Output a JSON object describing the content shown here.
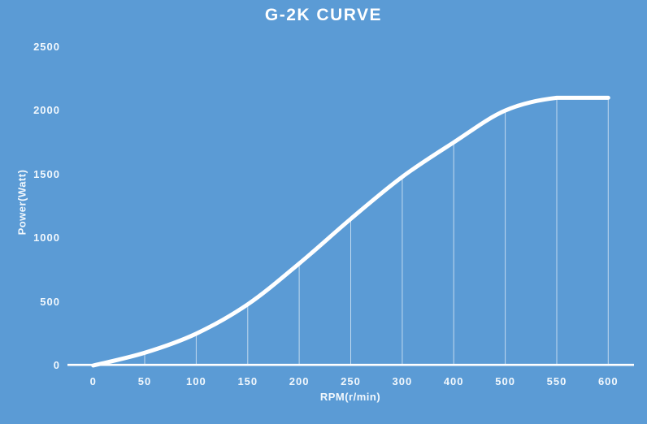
{
  "chart_data": {
    "type": "line",
    "title": "G-2K CURVE",
    "xlabel": "RPM(r/min)",
    "ylabel": "Power(Watt)",
    "categories": [
      "0",
      "50",
      "100",
      "150",
      "200",
      "250",
      "300",
      "400",
      "500",
      "550",
      "600"
    ],
    "values": [
      0,
      100,
      250,
      480,
      800,
      1150,
      1480,
      1750,
      2000,
      2100,
      2100
    ],
    "yticks": [
      0,
      500,
      1000,
      1500,
      2000,
      2500
    ],
    "ylim": [
      0,
      2500
    ],
    "grid": false,
    "legend_position": "none",
    "line_style": "smooth",
    "drop_lines": true,
    "markers": false
  },
  "colors": {
    "background": "#5b9bd5",
    "curve": "#ffffff",
    "axis_line": "#ffffff",
    "drop_line": "rgba(255,255,255,0.62)",
    "title_text": "#ffffff",
    "label_text": "#f2f8fd"
  }
}
